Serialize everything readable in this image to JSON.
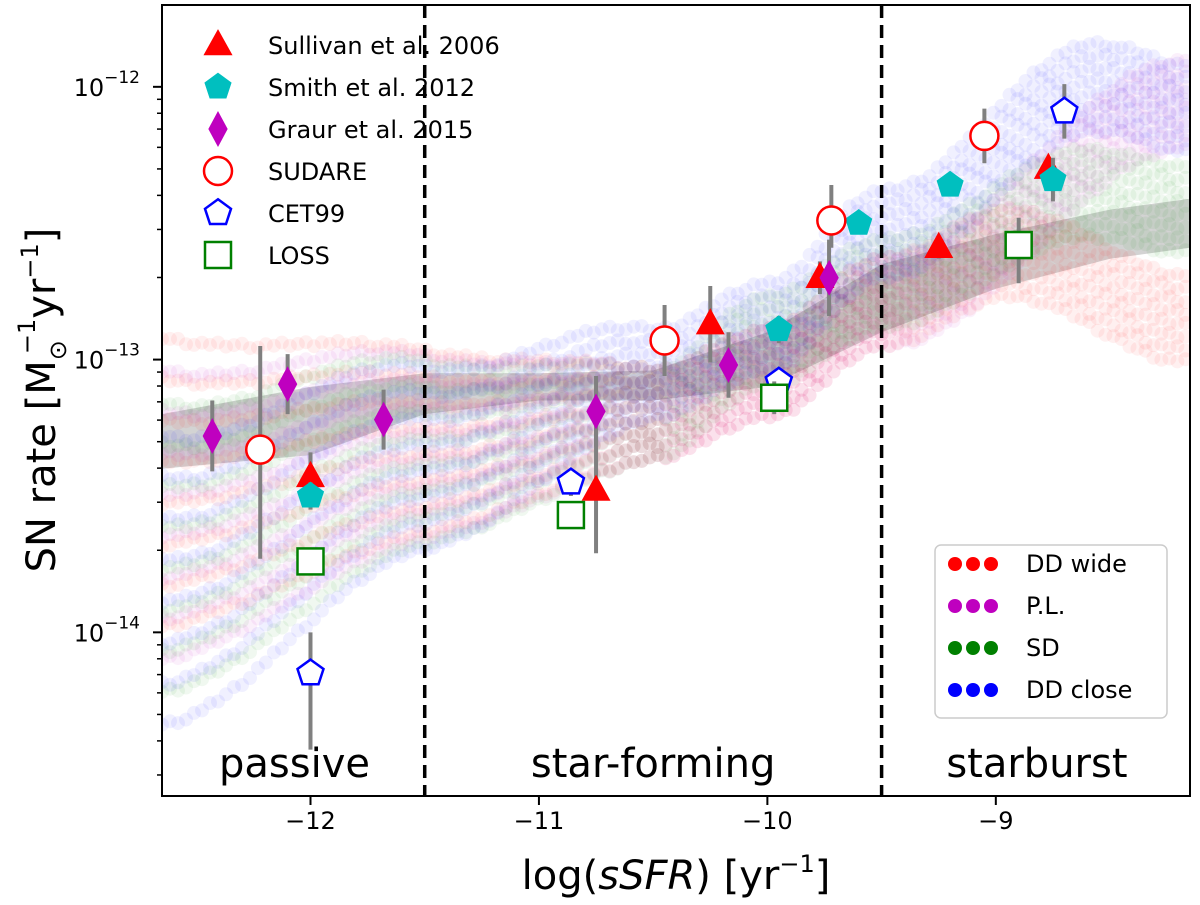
{
  "chart_data": {
    "type": "scatter",
    "xlabel_prefix": "log(",
    "xlabel_var": "sSFR",
    "xlabel_mid": ") [yr",
    "xlabel_exp": "−1",
    "xlabel_end": "]",
    "ylabel_prefix": "SN rate [M",
    "ylabel_sub": "⊙",
    "ylabel_exp1": "−1",
    "ylabel_mid": "yr",
    "ylabel_exp2": "−1",
    "ylabel_end": "]",
    "xlim": [
      -12.65,
      -8.15
    ],
    "ylim_log10": [
      -14.6,
      -11.7
    ],
    "x_ticks": [
      {
        "value": -12,
        "label": "−12"
      },
      {
        "value": -11,
        "label": "−11"
      },
      {
        "value": -10,
        "label": "−10"
      },
      {
        "value": -9,
        "label": "−9"
      }
    ],
    "y_ticks": [
      {
        "value": -14,
        "base": "10",
        "exp": "−14"
      },
      {
        "value": -13,
        "base": "10",
        "exp": "−13"
      },
      {
        "value": -12,
        "base": "10",
        "exp": "−12"
      }
    ],
    "regions": [
      {
        "label": "passive",
        "x_center": -12.07
      },
      {
        "label": "star-forming",
        "x_center": -10.5
      },
      {
        "label": "starburst",
        "x_center": -8.82
      }
    ],
    "boundaries": [
      -11.5,
      -9.5
    ],
    "gray_band": {
      "x": [
        -12.65,
        -12.0,
        -11.5,
        -11.0,
        -10.5,
        -10.0,
        -9.5,
        -9.0,
        -8.5,
        -8.15
      ],
      "upper_log10": [
        -13.2,
        -13.1,
        -13.05,
        -13.05,
        -13.04,
        -12.9,
        -12.65,
        -12.54,
        -12.45,
        -12.41
      ],
      "lower_log10": [
        -13.4,
        -13.35,
        -13.2,
        -13.15,
        -13.15,
        -13.1,
        -12.9,
        -12.74,
        -12.63,
        -12.59
      ]
    },
    "models": [
      {
        "name": "DD wide",
        "color": "#ff0000",
        "peak_x": -8.95,
        "peak_log10": -12.61,
        "end_log10": -12.85
      },
      {
        "name": "P.L.",
        "color": "#bf00bf",
        "peak_x": -8.15,
        "peak_log10": -12.05,
        "end_log10": -12.06
      },
      {
        "name": "SD",
        "color": "#008000",
        "peak_x": -8.6,
        "peak_log10": -12.39,
        "end_log10": -12.45
      },
      {
        "name": "DD close",
        "color": "#0000ff",
        "peak_x": -8.55,
        "peak_log10": -12.0,
        "end_log10": -12.08
      }
    ],
    "series": [
      {
        "name": "Sullivan et al. 2006",
        "marker": "triangle",
        "color": "#ff0000",
        "filled": true,
        "points": [
          {
            "x": -12.0,
            "y": -13.43,
            "elo": 0.09,
            "ehi": 0.09
          },
          {
            "x": -10.75,
            "y": -13.48,
            "elo": 0.23,
            "ehi": 0.23
          },
          {
            "x": -10.25,
            "y": -12.87,
            "elo": 0.14,
            "ehi": 0.14
          },
          {
            "x": -9.77,
            "y": -12.7,
            "elo": 0.06,
            "ehi": 0.06
          },
          {
            "x": -9.25,
            "y": -12.59,
            "elo": 0.04,
            "ehi": 0.04
          },
          {
            "x": -8.77,
            "y": -12.3,
            "elo": 0.04,
            "ehi": 0.04
          }
        ]
      },
      {
        "name": "Smith et al. 2012",
        "marker": "pentagon",
        "color": "#00bfbf",
        "filled": true,
        "points": [
          {
            "x": -12.0,
            "y": -13.5,
            "elo": 0.05,
            "ehi": 0.05
          },
          {
            "x": -9.95,
            "y": -12.89,
            "elo": 0.05,
            "ehi": 0.05
          },
          {
            "x": -9.6,
            "y": -12.5,
            "elo": 0.03,
            "ehi": 0.03
          },
          {
            "x": -9.2,
            "y": -12.36,
            "elo": 0.02,
            "ehi": 0.02
          },
          {
            "x": -8.75,
            "y": -12.34,
            "elo": 0.08,
            "ehi": 0.08
          }
        ]
      },
      {
        "name": "Graur et al. 2015",
        "marker": "diamond",
        "color": "#bf00bf",
        "filled": true,
        "points": [
          {
            "x": -12.43,
            "y": -13.28,
            "elo": 0.13,
            "ehi": 0.13
          },
          {
            "x": -12.1,
            "y": -13.09,
            "elo": 0.11,
            "ehi": 0.11
          },
          {
            "x": -11.68,
            "y": -13.22,
            "elo": 0.11,
            "ehi": 0.11
          },
          {
            "x": -10.75,
            "y": -13.19,
            "elo": 0.13,
            "ehi": 0.13
          },
          {
            "x": -10.17,
            "y": -13.02,
            "elo": 0.12,
            "ehi": 0.12
          },
          {
            "x": -9.73,
            "y": -12.7,
            "elo": 0.14,
            "ehi": 0.14
          }
        ]
      },
      {
        "name": "SUDARE",
        "marker": "circle",
        "color": "#ff0000",
        "filled": false,
        "points": [
          {
            "x": -12.22,
            "y": -13.33,
            "elo": 0.4,
            "ehi": 0.38
          },
          {
            "x": -10.45,
            "y": -12.93,
            "elo": 0.13,
            "ehi": 0.13
          },
          {
            "x": -9.72,
            "y": -12.49,
            "elo": 0.1,
            "ehi": 0.13
          },
          {
            "x": -9.05,
            "y": -12.18,
            "elo": 0.1,
            "ehi": 0.1
          }
        ]
      },
      {
        "name": "CET99",
        "marker": "pentagon",
        "color": "#0000ff",
        "filled": false,
        "points": [
          {
            "x": -12.0,
            "y": -14.15,
            "elo": 0.28,
            "ehi": 0.15
          },
          {
            "x": -10.86,
            "y": -13.45,
            "elo": 0.05,
            "ehi": 0.05
          },
          {
            "x": -9.95,
            "y": -13.08,
            "elo": 0.05,
            "ehi": 0.05
          },
          {
            "x": -8.7,
            "y": -12.09,
            "elo": 0.1,
            "ehi": 0.1
          }
        ]
      },
      {
        "name": "LOSS",
        "marker": "square",
        "color": "#008000",
        "filled": false,
        "points": [
          {
            "x": -12.0,
            "y": -13.74,
            "elo": 0.05,
            "ehi": 0.05
          },
          {
            "x": -10.86,
            "y": -13.57,
            "elo": 0.05,
            "ehi": 0.05
          },
          {
            "x": -9.97,
            "y": -13.14,
            "elo": 0.06,
            "ehi": 0.06
          },
          {
            "x": -8.9,
            "y": -12.58,
            "elo": 0.14,
            "ehi": 0.1
          }
        ]
      }
    ]
  }
}
